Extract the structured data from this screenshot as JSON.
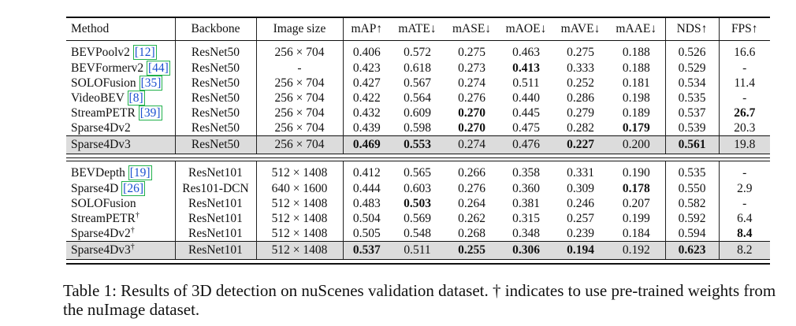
{
  "table": {
    "headers": [
      "Method",
      "Backbone",
      "Image size",
      "mAP↑",
      "mATE↓",
      "mASE↓",
      "mAOE↓",
      "mAVE↓",
      "mAAE↓",
      "NDS↑",
      "FPS↑"
    ],
    "group1": [
      {
        "method": "BEVPoolv2",
        "cite": "[12]",
        "backbone": "ResNet50",
        "size": "256 × 704",
        "map": "0.406",
        "mate": "0.572",
        "mase": "0.275",
        "maoe": "0.463",
        "mave": "0.275",
        "maae": "0.188",
        "nds": "0.526",
        "fps": "16.6"
      },
      {
        "method": "BEVFormerv2",
        "cite": "[44]",
        "backbone": "ResNet50",
        "size": "-",
        "map": "0.423",
        "mate": "0.618",
        "mase": "0.273",
        "maoe": "0.413",
        "mave": "0.333",
        "maae": "0.188",
        "nds": "0.529",
        "fps": "-"
      },
      {
        "method": "SOLOFusion",
        "cite": "[35]",
        "backbone": "ResNet50",
        "size": "256 × 704",
        "map": "0.427",
        "mate": "0.567",
        "mase": "0.274",
        "maoe": "0.511",
        "mave": "0.252",
        "maae": "0.181",
        "nds": "0.534",
        "fps": "11.4"
      },
      {
        "method": "VideoBEV",
        "cite": "[8]",
        "backbone": "ResNet50",
        "size": "256 × 704",
        "map": "0.422",
        "mate": "0.564",
        "mase": "0.276",
        "maoe": "0.440",
        "mave": "0.286",
        "maae": "0.198",
        "nds": "0.535",
        "fps": "-"
      },
      {
        "method": "StreamPETR",
        "cite": "[39]",
        "backbone": "ResNet50",
        "size": "256 × 704",
        "map": "0.432",
        "mate": "0.609",
        "mase": "0.270",
        "maoe": "0.445",
        "mave": "0.279",
        "maae": "0.189",
        "nds": "0.537",
        "fps": "26.7"
      },
      {
        "method": "Sparse4Dv2",
        "cite": "",
        "backbone": "ResNet50",
        "size": "256 × 704",
        "map": "0.439",
        "mate": "0.598",
        "mase": "0.270",
        "maoe": "0.475",
        "mave": "0.282",
        "maae": "0.179",
        "nds": "0.539",
        "fps": "20.3"
      },
      {
        "method": "Sparse4Dv3",
        "cite": "",
        "backbone": "ResNet50",
        "size": "256 × 704",
        "map": "0.469",
        "mate": "0.553",
        "mase": "0.274",
        "maoe": "0.476",
        "mave": "0.227",
        "maae": "0.200",
        "nds": "0.561",
        "fps": "19.8"
      }
    ],
    "group2": [
      {
        "method": "BEVDepth",
        "cite": "[19]",
        "backbone": "ResNet101",
        "size": "512 × 1408",
        "map": "0.412",
        "mate": "0.565",
        "mase": "0.266",
        "maoe": "0.358",
        "mave": "0.331",
        "maae": "0.190",
        "nds": "0.535",
        "fps": "-"
      },
      {
        "method": "Sparse4D",
        "cite": "[26]",
        "backbone": "Res101-DCN",
        "size": "640 × 1600",
        "map": "0.444",
        "mate": "0.603",
        "mase": "0.276",
        "maoe": "0.360",
        "mave": "0.309",
        "maae": "0.178",
        "nds": "0.550",
        "fps": "2.9"
      },
      {
        "method": "SOLOFusion",
        "cite": "",
        "backbone": "ResNet101",
        "size": "512 × 1408",
        "map": "0.483",
        "mate": "0.503",
        "mase": "0.264",
        "maoe": "0.381",
        "mave": "0.246",
        "maae": "0.207",
        "nds": "0.582",
        "fps": "-"
      },
      {
        "method": "StreamPETR",
        "sup": "†",
        "cite": "",
        "backbone": "ResNet101",
        "size": "512 × 1408",
        "map": "0.504",
        "mate": "0.569",
        "mase": "0.262",
        "maoe": "0.315",
        "mave": "0.257",
        "maae": "0.199",
        "nds": "0.592",
        "fps": "6.4"
      },
      {
        "method": "Sparse4Dv2",
        "sup": "†",
        "cite": "",
        "backbone": "ResNet101",
        "size": "512 × 1408",
        "map": "0.505",
        "mate": "0.548",
        "mase": "0.268",
        "maoe": "0.348",
        "mave": "0.239",
        "maae": "0.184",
        "nds": "0.594",
        "fps": "8.4"
      },
      {
        "method": "Sparse4Dv3",
        "sup": "†",
        "cite": "",
        "backbone": "ResNet101",
        "size": "512 × 1408",
        "map": "0.537",
        "mate": "0.511",
        "mase": "0.255",
        "maoe": "0.306",
        "mave": "0.194",
        "maae": "0.192",
        "nds": "0.623",
        "fps": "8.2"
      }
    ]
  },
  "caption": "Table 1: Results of 3D detection on nuScenes validation dataset. † indicates to use pre-trained weights from the nuImage dataset."
}
